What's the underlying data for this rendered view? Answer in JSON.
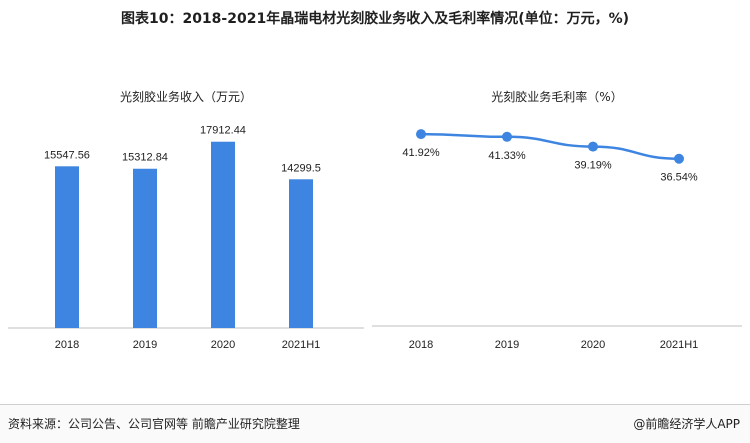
{
  "page": {
    "title": "图表10：2018-2021年晶瑞电材光刻胶业务收入及毛利率情况(单位：万元，%)",
    "source": "资料来源：公司公告、公司官网等 前瞻产业研究院整理",
    "brand": "@前瞻经济学人APP"
  },
  "chart_data": [
    {
      "type": "bar",
      "title": "光刻胶业务收入（万元）",
      "categories": [
        "2018",
        "2019",
        "2020",
        "2021H1"
      ],
      "values": [
        15547.56,
        15312.84,
        17912.44,
        14299.5
      ],
      "value_labels": [
        "15547.56",
        "15312.84",
        "17912.44",
        "14299.5"
      ],
      "ylim": [
        0,
        20000
      ],
      "color": "#3d85e0",
      "grid": false,
      "xlabel": "",
      "ylabel": ""
    },
    {
      "type": "line",
      "title": "光刻胶业务毛利率（%）",
      "categories": [
        "2018",
        "2019",
        "2020",
        "2021H1"
      ],
      "values": [
        41.92,
        41.33,
        39.19,
        36.54
      ],
      "value_labels": [
        "41.92%",
        "41.33%",
        "39.19%",
        "36.54%"
      ],
      "ylim": [
        0,
        45
      ],
      "color": "#3d85e0",
      "grid": false,
      "xlabel": "",
      "ylabel": ""
    }
  ]
}
